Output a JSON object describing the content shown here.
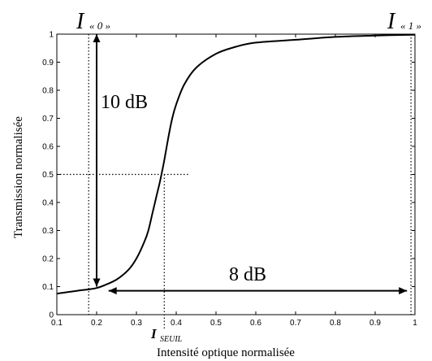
{
  "chart_data": {
    "type": "line",
    "title": "",
    "xlabel": "Intensité optique normalisée",
    "ylabel": "Transmission normalisée",
    "xlim": [
      0.1,
      1.0
    ],
    "ylim": [
      0,
      1
    ],
    "x_ticks": [
      0.1,
      0.2,
      0.3,
      0.4,
      0.5,
      0.6,
      0.7,
      0.8,
      0.9,
      1
    ],
    "x_tick_labels": [
      "0.1",
      "0.2",
      "0.3",
      "0.4",
      "0.5",
      "0.6",
      "0.7",
      "0.8",
      "0.9",
      "1"
    ],
    "y_ticks": [
      0,
      0.1,
      0.2,
      0.3,
      0.4,
      0.5,
      0.6,
      0.7,
      0.8,
      0.9,
      1
    ],
    "y_tick_labels": [
      "0",
      "0.1",
      "0.2",
      "0.3",
      "0.4",
      "0.5",
      "0.6",
      "0.7",
      "0.8",
      "0.9",
      "1"
    ],
    "grid": false,
    "series": [
      {
        "x": [
          0.1,
          0.15,
          0.18,
          0.2,
          0.22,
          0.25,
          0.28,
          0.3,
          0.32,
          0.33,
          0.34,
          0.35,
          0.36,
          0.37,
          0.38,
          0.39,
          0.4,
          0.42,
          0.45,
          0.5,
          0.55,
          0.6,
          0.7,
          0.8,
          0.9,
          1.0
        ],
        "y": [
          0.075,
          0.085,
          0.09,
          0.095,
          0.105,
          0.125,
          0.16,
          0.2,
          0.26,
          0.3,
          0.36,
          0.42,
          0.48,
          0.55,
          0.63,
          0.7,
          0.75,
          0.82,
          0.88,
          0.93,
          0.955,
          0.97,
          0.98,
          0.99,
          0.995,
          0.998
        ]
      }
    ],
    "annotations": {
      "i0_prefix": "I",
      "i0_sub": "« 0 »",
      "i1_prefix": "I",
      "i1_sub": "« 1 »",
      "iseuil_prefix": "I",
      "iseuil_sub": "SEUIL",
      "db_vertical": "10 dB",
      "db_horizontal": "8 dB"
    },
    "reference_lines": {
      "x_i0": 0.18,
      "x_seuil": 0.37,
      "x_i1": 0.99,
      "y_half": 0.5,
      "arrow_vertical_x": 0.2,
      "arrow_vertical_y": [
        0.1,
        1.0
      ],
      "arrow_horizontal_y": 0.085,
      "arrow_horizontal_x": [
        0.23,
        0.98
      ]
    }
  }
}
